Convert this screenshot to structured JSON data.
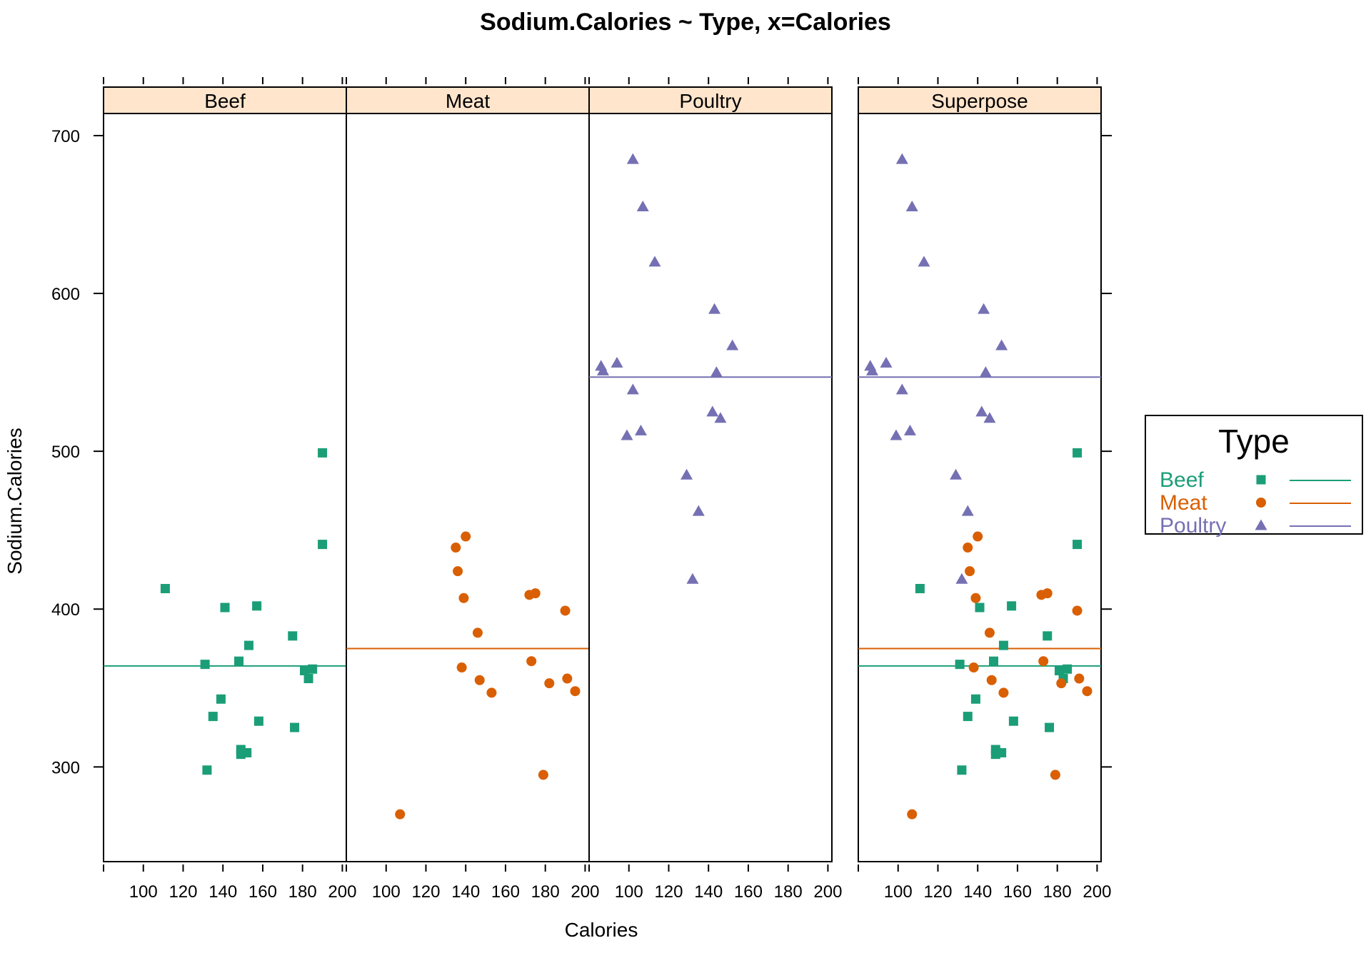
{
  "chart_data": {
    "type": "scatter",
    "title": "Sodium.Calories ~ Type, x=Calories",
    "xlabel": "Calories",
    "ylabel": "Sodium.Calories",
    "xlim": [
      80,
      202
    ],
    "ylim": [
      240,
      714
    ],
    "x_ticks": [
      100,
      120,
      140,
      160,
      180,
      200
    ],
    "y_ticks": [
      300,
      400,
      500,
      600,
      700
    ],
    "strip_color": "#FFE5CC",
    "panels": [
      "Beef",
      "Meat",
      "Poultry",
      "Superpose"
    ],
    "legend": {
      "title": "Type",
      "position": "right"
    },
    "series": [
      {
        "name": "Beef",
        "color": "#1B9E77",
        "marker": "square",
        "mean_line": 364,
        "points": [
          {
            "x": 111,
            "y": 413
          },
          {
            "x": 131,
            "y": 365
          },
          {
            "x": 132,
            "y": 298
          },
          {
            "x": 135,
            "y": 332
          },
          {
            "x": 139,
            "y": 343
          },
          {
            "x": 141,
            "y": 401
          },
          {
            "x": 148,
            "y": 367
          },
          {
            "x": 149,
            "y": 308
          },
          {
            "x": 149,
            "y": 311
          },
          {
            "x": 152,
            "y": 309
          },
          {
            "x": 153,
            "y": 377
          },
          {
            "x": 157,
            "y": 402
          },
          {
            "x": 158,
            "y": 329
          },
          {
            "x": 175,
            "y": 383
          },
          {
            "x": 176,
            "y": 325
          },
          {
            "x": 181,
            "y": 361
          },
          {
            "x": 183,
            "y": 356
          },
          {
            "x": 185,
            "y": 362
          },
          {
            "x": 190,
            "y": 441
          },
          {
            "x": 190,
            "y": 499
          }
        ]
      },
      {
        "name": "Meat",
        "color": "#D95F02",
        "marker": "circle",
        "mean_line": 375,
        "points": [
          {
            "x": 107,
            "y": 270
          },
          {
            "x": 135,
            "y": 439
          },
          {
            "x": 136,
            "y": 424
          },
          {
            "x": 138,
            "y": 363
          },
          {
            "x": 139,
            "y": 407
          },
          {
            "x": 140,
            "y": 446
          },
          {
            "x": 146,
            "y": 385
          },
          {
            "x": 147,
            "y": 355
          },
          {
            "x": 153,
            "y": 347
          },
          {
            "x": 172,
            "y": 409
          },
          {
            "x": 173,
            "y": 367
          },
          {
            "x": 175,
            "y": 410
          },
          {
            "x": 179,
            "y": 295
          },
          {
            "x": 182,
            "y": 353
          },
          {
            "x": 190,
            "y": 399
          },
          {
            "x": 191,
            "y": 356
          },
          {
            "x": 195,
            "y": 348
          }
        ]
      },
      {
        "name": "Poultry",
        "color": "#7570B3",
        "marker": "triangle",
        "mean_line": 547,
        "points": [
          {
            "x": 86,
            "y": 554
          },
          {
            "x": 87,
            "y": 551
          },
          {
            "x": 94,
            "y": 556
          },
          {
            "x": 99,
            "y": 510
          },
          {
            "x": 102,
            "y": 539
          },
          {
            "x": 102,
            "y": 685
          },
          {
            "x": 106,
            "y": 513
          },
          {
            "x": 107,
            "y": 655
          },
          {
            "x": 113,
            "y": 620
          },
          {
            "x": 129,
            "y": 485
          },
          {
            "x": 132,
            "y": 419
          },
          {
            "x": 135,
            "y": 462
          },
          {
            "x": 142,
            "y": 525
          },
          {
            "x": 143,
            "y": 590
          },
          {
            "x": 144,
            "y": 550
          },
          {
            "x": 146,
            "y": 521
          },
          {
            "x": 152,
            "y": 567
          }
        ]
      }
    ]
  }
}
